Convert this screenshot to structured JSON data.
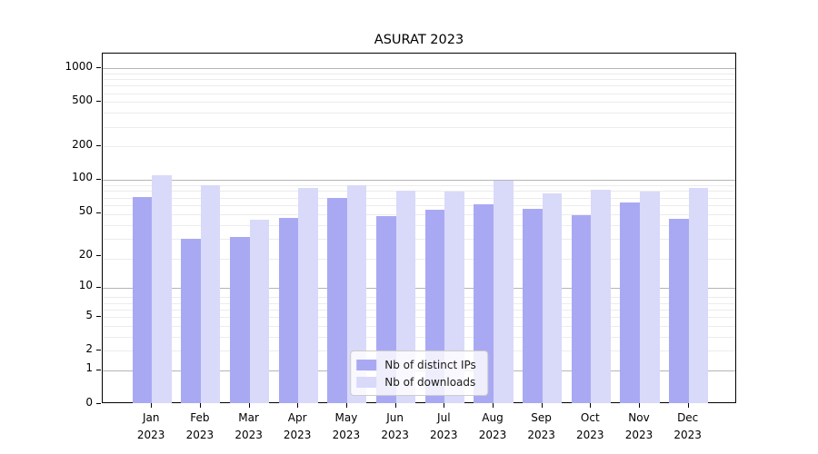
{
  "chart_data": {
    "type": "bar",
    "title": "ASURAT 2023",
    "yscale": "log1p",
    "ylim": [
      0,
      1300
    ],
    "yticks": [
      0,
      1,
      2,
      5,
      10,
      20,
      50,
      100,
      200,
      500,
      1000
    ],
    "major_grid_values": [
      1,
      10,
      100,
      1000
    ],
    "grid": true,
    "legend_position": "lower center",
    "x_tick_year": "2023",
    "categories": [
      "Jan",
      "Feb",
      "Mar",
      "Apr",
      "May",
      "Jun",
      "Jul",
      "Aug",
      "Sep",
      "Oct",
      "Nov",
      "Dec"
    ],
    "series": [
      {
        "name": "Nb of distinct IPs",
        "color": "#a9a9f3",
        "values": [
          70,
          29,
          30,
          45,
          69,
          47,
          53,
          60,
          54,
          48,
          62,
          44
        ]
      },
      {
        "name": "Nb of downloads",
        "color": "#d9d9fa",
        "values": [
          110,
          89,
          43,
          85,
          90,
          80,
          78,
          98,
          75,
          81,
          78,
          85
        ]
      }
    ],
    "colors": {
      "axis": "#000000",
      "major_grid": "#b5b5b5",
      "minor_grid": "#ececec",
      "legend_border": "#cccccc"
    }
  }
}
